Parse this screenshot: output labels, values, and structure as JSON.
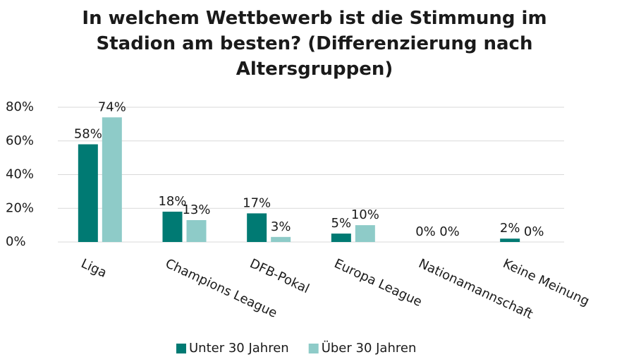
{
  "chart_data": {
    "type": "bar",
    "title": "In welchem Wettbewerb ist die Stimmung im Stadion am besten? (Differenzierung nach Altersgruppen)",
    "categories": [
      "Liga",
      "Champions League",
      "DFB-Pokal",
      "Europa League",
      "Nationamannschaft",
      "Keine Meinung"
    ],
    "series": [
      {
        "name": "Unter 30 Jahren",
        "color": "#007a73",
        "values": [
          58,
          18,
          17,
          5,
          0,
          2
        ],
        "value_labels": [
          "58%",
          "18%",
          "17%",
          "5%",
          "0%",
          "2%"
        ]
      },
      {
        "name": "Über 30 Jahren",
        "color": "#8ecbc8",
        "values": [
          74,
          13,
          3,
          10,
          0,
          0
        ],
        "value_labels": [
          "74%",
          "13%",
          "3%",
          "10%",
          "0%",
          "0%"
        ]
      }
    ],
    "ylim": [
      0,
      80
    ],
    "yticks": [
      {
        "value": 0,
        "label": "0%"
      },
      {
        "value": 20,
        "label": "20%"
      },
      {
        "value": 40,
        "label": "40%"
      },
      {
        "value": 60,
        "label": "60%"
      },
      {
        "value": 80,
        "label": "80%"
      }
    ],
    "grid": true,
    "legend": "bottom"
  }
}
